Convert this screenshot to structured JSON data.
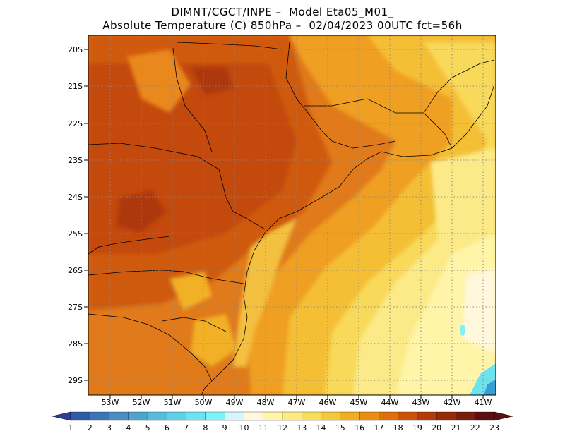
{
  "header": {
    "line1": "DIMNT/CGCT/INPE –  Model Eta05_M01_",
    "line2": "Absolute Temperature (C) 850hPa –  02/04/2023 00UTC fct=56h"
  },
  "map": {
    "lon_ticks": [
      "53W",
      "52W",
      "51W",
      "50W",
      "49W",
      "48W",
      "47W",
      "46W",
      "45W",
      "44W",
      "43W",
      "42W",
      "41W"
    ],
    "lat_ticks": [
      "20S",
      "21S",
      "22S",
      "23S",
      "24S",
      "25S",
      "26S",
      "27S",
      "28S",
      "29S"
    ],
    "grid": "dotted",
    "lon_range": [
      -53.6,
      -40.6
    ],
    "lat_range": [
      -29.4,
      -19.75
    ]
  },
  "colorbar": {
    "labels": [
      "1",
      "2",
      "3",
      "4",
      "5",
      "6",
      "7",
      "8",
      "9",
      "10",
      "11",
      "12",
      "13",
      "14",
      "15",
      "16",
      "17",
      "18",
      "19",
      "20",
      "21",
      "22",
      "23"
    ],
    "colors": [
      "#2a3f95",
      "#2f5aa7",
      "#3a75b6",
      "#4a8dc2",
      "#4fa4cf",
      "#56bcdc",
      "#5fd0e6",
      "#6ce3f0",
      "#7ef2fa",
      "#d8f6fa",
      "#fff8dc",
      "#fff4a8",
      "#fdea85",
      "#f8dc5c",
      "#f5c839",
      "#f0ae20",
      "#ea8e12",
      "#df6e0b",
      "#cc5208",
      "#b23b07",
      "#962b09",
      "#7a1d0b",
      "#5c0f0e"
    ]
  }
}
